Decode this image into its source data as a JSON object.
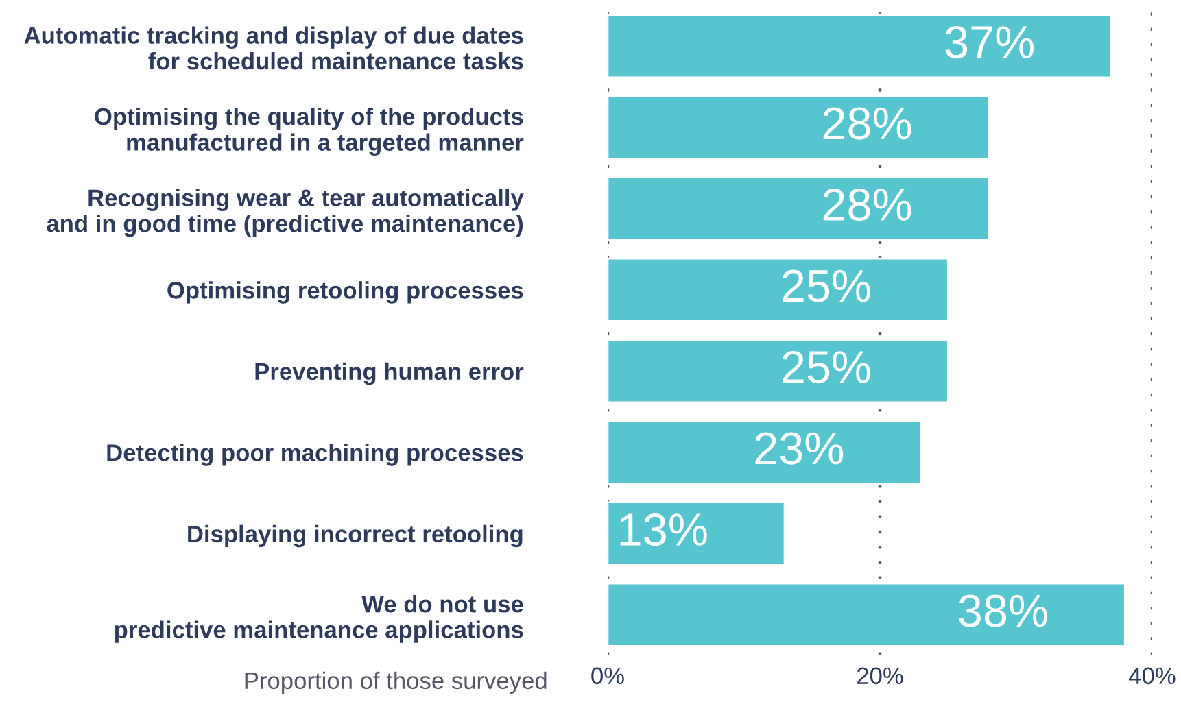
{
  "chart_data": {
    "type": "bar",
    "orientation": "horizontal",
    "xlabel": "Proportion of those surveyed",
    "categories": [
      "Automatic tracking and display of due dates\nfor scheduled maintenance tasks",
      "Optimising the quality of the products\nmanufactured in a targeted manner",
      "Recognising wear & tear automatically\nand in good time (predictive maintenance)",
      "Optimising retooling processes",
      "Preventing human error",
      "Detecting poor machining processes",
      "Displaying incorrect retooling",
      "We do not use\npredictive maintenance applications"
    ],
    "values": [
      37,
      28,
      28,
      25,
      25,
      23,
      13,
      38
    ],
    "value_labels": [
      "37%",
      "28%",
      "28%",
      "25%",
      "25%",
      "23%",
      "13%",
      "38%"
    ],
    "color": "#56c5d0",
    "xlim": [
      0,
      40
    ],
    "xticks": [
      {
        "value": 0,
        "label": "0%"
      },
      {
        "value": 20,
        "label": "20%"
      },
      {
        "value": 40,
        "label": "40%"
      }
    ],
    "grid": "x",
    "legend": false
  }
}
